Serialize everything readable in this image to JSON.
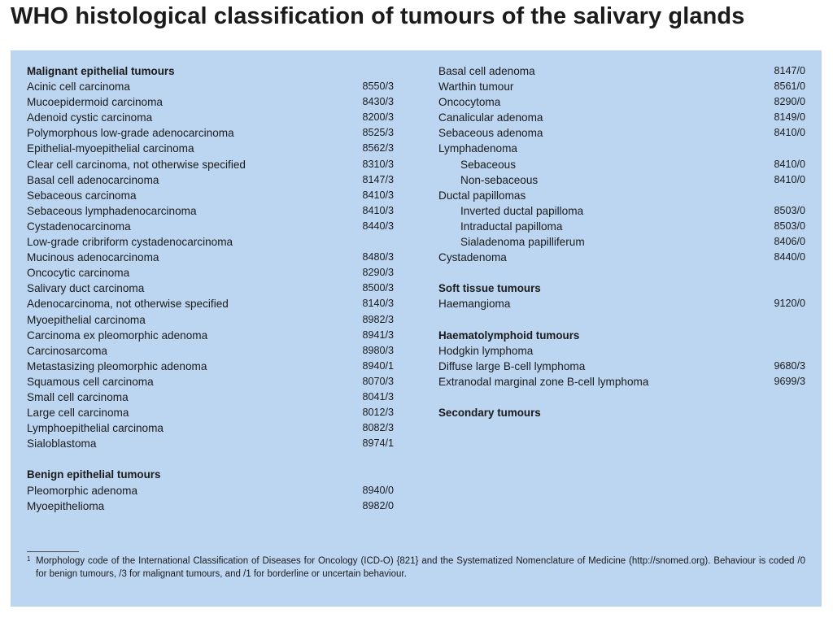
{
  "title": "WHO histological classification of tumours of the salivary glands",
  "left_column": [
    {
      "type": "heading",
      "name": "Malignant epithelial tumours",
      "code": ""
    },
    {
      "type": "item",
      "name": "Acinic cell carcinoma",
      "code": "8550/3"
    },
    {
      "type": "item",
      "name": "Mucoepidermoid carcinoma",
      "code": "8430/3"
    },
    {
      "type": "item",
      "name": "Adenoid cystic carcinoma",
      "code": "8200/3"
    },
    {
      "type": "item",
      "name": "Polymorphous low-grade adenocarcinoma",
      "code": "8525/3"
    },
    {
      "type": "item",
      "name": "Epithelial-myoepithelial carcinoma",
      "code": "8562/3"
    },
    {
      "type": "item",
      "name": "Clear cell carcinoma, not otherwise specified",
      "code": "8310/3"
    },
    {
      "type": "item",
      "name": "Basal cell adenocarcinoma",
      "code": "8147/3"
    },
    {
      "type": "item",
      "name": "Sebaceous carcinoma",
      "code": "8410/3"
    },
    {
      "type": "item",
      "name": "Sebaceous lymphadenocarcinoma",
      "code": "8410/3"
    },
    {
      "type": "item",
      "name": "Cystadenocarcinoma",
      "code": "8440/3"
    },
    {
      "type": "item",
      "name": "Low-grade cribriform cystadenocarcinoma",
      "code": ""
    },
    {
      "type": "item",
      "name": "Mucinous adenocarcinoma",
      "code": "8480/3"
    },
    {
      "type": "item",
      "name": "Oncocytic carcinoma",
      "code": "8290/3"
    },
    {
      "type": "item",
      "name": "Salivary duct carcinoma",
      "code": "8500/3"
    },
    {
      "type": "item",
      "name": "Adenocarcinoma, not otherwise specified",
      "code": "8140/3"
    },
    {
      "type": "item",
      "name": "Myoepithelial carcinoma",
      "code": "8982/3"
    },
    {
      "type": "item",
      "name": "Carcinoma ex pleomorphic adenoma",
      "code": "8941/3"
    },
    {
      "type": "item",
      "name": "Carcinosarcoma",
      "code": "8980/3"
    },
    {
      "type": "item",
      "name": "Metastasizing pleomorphic adenoma",
      "code": "8940/1"
    },
    {
      "type": "item",
      "name": "Squamous cell carcinoma",
      "code": "8070/3"
    },
    {
      "type": "item",
      "name": "Small cell carcinoma",
      "code": "8041/3"
    },
    {
      "type": "item",
      "name": "Large cell carcinoma",
      "code": "8012/3"
    },
    {
      "type": "item",
      "name": "Lymphoepithelial carcinoma",
      "code": "8082/3"
    },
    {
      "type": "item",
      "name": "Sialoblastoma",
      "code": "8974/1"
    },
    {
      "type": "spacer",
      "name": "",
      "code": ""
    },
    {
      "type": "heading",
      "name": "Benign epithelial tumours",
      "code": ""
    },
    {
      "type": "item",
      "name": "Pleomorphic adenoma",
      "code": "8940/0"
    },
    {
      "type": "item",
      "name": "Myoepithelioma",
      "code": "8982/0"
    }
  ],
  "right_column": [
    {
      "type": "item",
      "name": "Basal cell adenoma",
      "code": "8147/0"
    },
    {
      "type": "item",
      "name": "Warthin tumour",
      "code": "8561/0"
    },
    {
      "type": "item",
      "name": "Oncocytoma",
      "code": "8290/0"
    },
    {
      "type": "item",
      "name": "Canalicular adenoma",
      "code": "8149/0"
    },
    {
      "type": "item",
      "name": "Sebaceous adenoma",
      "code": "8410/0"
    },
    {
      "type": "item",
      "name": "Lymphadenoma",
      "code": ""
    },
    {
      "type": "subitem",
      "name": "Sebaceous",
      "code": "8410/0"
    },
    {
      "type": "subitem",
      "name": "Non-sebaceous",
      "code": "8410/0"
    },
    {
      "type": "item",
      "name": "Ductal papillomas",
      "code": ""
    },
    {
      "type": "subitem",
      "name": "Inverted ductal papilloma",
      "code": "8503/0"
    },
    {
      "type": "subitem",
      "name": "Intraductal papilloma",
      "code": "8503/0"
    },
    {
      "type": "subitem",
      "name": "Sialadenoma papilliferum",
      "code": "8406/0"
    },
    {
      "type": "item",
      "name": "Cystadenoma",
      "code": "8440/0"
    },
    {
      "type": "spacer",
      "name": "",
      "code": ""
    },
    {
      "type": "heading",
      "name": "Soft tissue tumours",
      "code": ""
    },
    {
      "type": "item",
      "name": "Haemangioma",
      "code": "9120/0"
    },
    {
      "type": "spacer",
      "name": "",
      "code": ""
    },
    {
      "type": "heading",
      "name": "Haematolymphoid tumours",
      "code": ""
    },
    {
      "type": "item",
      "name": "Hodgkin lymphoma",
      "code": ""
    },
    {
      "type": "item",
      "name": "Diffuse large B-cell lymphoma",
      "code": "9680/3"
    },
    {
      "type": "item",
      "name": "Extranodal marginal zone B-cell lymphoma",
      "code": "9699/3"
    },
    {
      "type": "spacer",
      "name": "",
      "code": ""
    },
    {
      "type": "heading",
      "name": "Secondary tumours",
      "code": ""
    }
  ],
  "footnote": {
    "marker": "1",
    "text": "Morphology code of the International Classification of Diseases for Oncology (ICD-O) {821} and the Systematized Nomenclature of Medicine (http://snomed.org). Behaviour is coded /0 for benign tumours, /3 for malignant tumours, and /1 for borderline or uncertain behaviour."
  }
}
